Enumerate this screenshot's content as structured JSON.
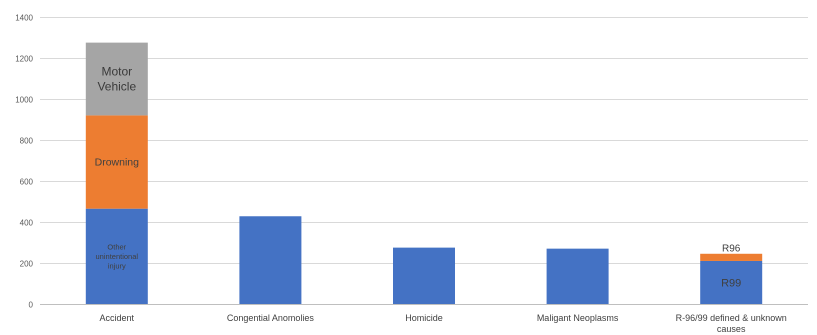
{
  "chart_data": {
    "type": "bar",
    "stacked": true,
    "title": "",
    "xlabel": "",
    "ylabel": "",
    "ylim": [
      0,
      1400
    ],
    "yticks": [
      0,
      200,
      400,
      600,
      800,
      1000,
      1200,
      1400
    ],
    "grid": true,
    "legend": "none",
    "categories": [
      "Accident",
      "Congential Anomolies",
      "Homicide",
      "Maligant Neoplasms",
      "R-96/99 defined & unknown causes"
    ],
    "category_lines": [
      [
        "Accident"
      ],
      [
        "Congential Anomolies"
      ],
      [
        "Homicide"
      ],
      [
        "Maligant Neoplasms"
      ],
      [
        "R-96/99 defined & unknown",
        "causes"
      ]
    ],
    "series": [
      {
        "color": "#4472C4",
        "values": [
          465,
          428,
          275,
          270,
          210
        ]
      },
      {
        "color": "#ED7D31",
        "values": [
          455,
          0,
          0,
          0,
          35
        ]
      },
      {
        "color": "#A5A5A5",
        "values": [
          355,
          0,
          0,
          0,
          0
        ]
      }
    ],
    "annotations": [
      {
        "category": 0,
        "series": 0,
        "lines": [
          "Other",
          "unintentional",
          "injury"
        ]
      },
      {
        "category": 0,
        "series": 1,
        "lines": [
          "Drowning"
        ]
      },
      {
        "category": 0,
        "series": 2,
        "lines": [
          "Motor",
          "Vehicle"
        ]
      },
      {
        "category": 4,
        "series": 0,
        "lines": [
          "R99"
        ]
      },
      {
        "category": 4,
        "series": 1,
        "lines": [
          "R96"
        ]
      }
    ]
  },
  "colors": {
    "grid": "#d9d9d9",
    "axis": "#bfbfbf",
    "tick_text": "#595959",
    "category_text": "#404040"
  }
}
